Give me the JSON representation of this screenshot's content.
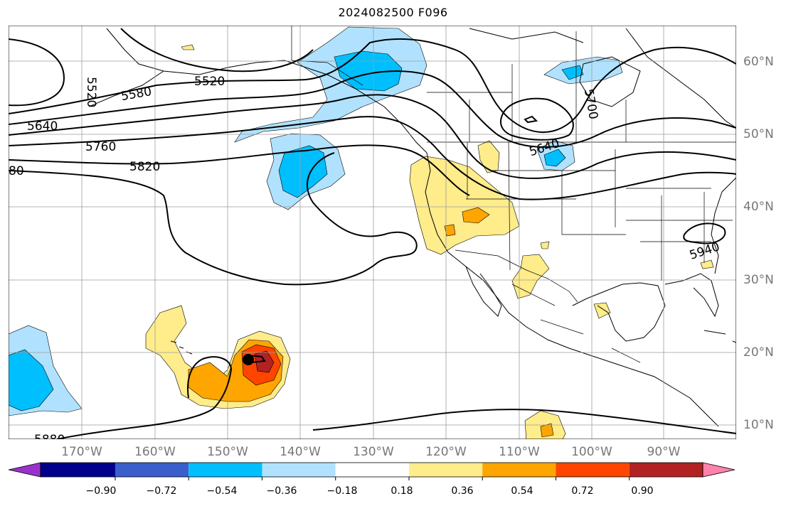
{
  "title": "2024082500 F096",
  "map": {
    "lat_labels": [
      "60°N",
      "50°N",
      "40°N",
      "30°N",
      "20°N",
      "10°N"
    ],
    "lon_labels": [
      "170°W",
      "160°W",
      "150°W",
      "140°W",
      "130°W",
      "120°W",
      "110°W",
      "100°W",
      "90°W"
    ],
    "contour_labels": [
      "5520",
      "5580",
      "5520",
      "5640",
      "5760",
      "5820",
      "80",
      "5640",
      "5700",
      "5940",
      "5880"
    ],
    "storm_marker": "filled-circle"
  },
  "colorbar": {
    "ticks": [
      "−0.90",
      "−0.72",
      "−0.54",
      "−0.36",
      "−0.18",
      "0.18",
      "0.36",
      "0.54",
      "0.72",
      "0.90"
    ],
    "colors": [
      "#9932cc",
      "#00008b",
      "#3a5fcd",
      "#00bfff",
      "#b0e2ff",
      "#ffffff",
      "#ffec8b",
      "#ffa500",
      "#ff4500",
      "#b22222",
      "#ff82ab"
    ]
  }
}
